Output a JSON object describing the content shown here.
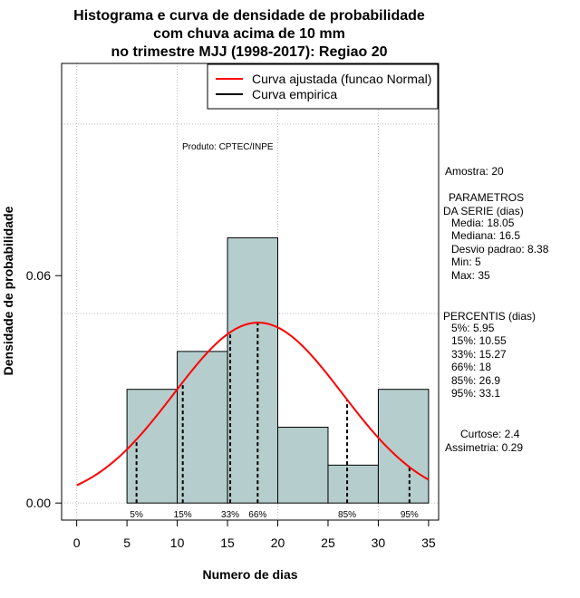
{
  "chart_data": {
    "type": "histogram",
    "title_lines": [
      "Histograma e curva de densidade de probabilidade",
      "com chuva acima de 10 mm",
      "no trimestre MJJ (1998-2017): Regiao 20"
    ],
    "xlabel": "Numero de dias",
    "ylabel": "Densidade de probabilidade",
    "xlim": [
      -1.5,
      36
    ],
    "ylim": [
      -0.0045,
      0.116
    ],
    "x_ticks": [
      0,
      5,
      10,
      15,
      20,
      25,
      30,
      35
    ],
    "x_tick_labels": [
      "0",
      "5",
      "10",
      "15",
      "20",
      "25",
      "30",
      "35"
    ],
    "y_ticks": [
      0.0,
      0.06
    ],
    "y_tick_labels": [
      "0.00",
      "0.06"
    ],
    "grid_x": [
      0,
      10,
      20,
      30
    ],
    "grid_y": [
      0.0,
      0.05,
      0.1
    ],
    "bins": [
      {
        "start": 5,
        "end": 10,
        "density": 0.03
      },
      {
        "start": 10,
        "end": 15,
        "density": 0.04
      },
      {
        "start": 15,
        "end": 20,
        "density": 0.07
      },
      {
        "start": 20,
        "end": 25,
        "density": 0.02
      },
      {
        "start": 25,
        "end": 30,
        "density": 0.01
      },
      {
        "start": 30,
        "end": 35,
        "density": 0.03
      }
    ],
    "bar_color": "#b5cdcd",
    "normal_curve": {
      "mean": 18.05,
      "sd": 8.38,
      "x_range": [
        0,
        35
      ],
      "color": "#ff0000"
    },
    "percentile_lines": [
      {
        "label": "5%",
        "x": 5.95
      },
      {
        "label": "15%",
        "x": 10.55
      },
      {
        "label": "33%",
        "x": 15.27
      },
      {
        "label": "66%",
        "x": 18
      },
      {
        "label": "85%",
        "x": 26.9
      },
      {
        "label": "95%",
        "x": 33.1
      }
    ],
    "legend": [
      {
        "label": "Curva ajustada (funcao Normal)",
        "color": "#ff0000"
      },
      {
        "label": "Curva empirica",
        "color": "#000000"
      }
    ],
    "legend_position": "top-right",
    "credit": "Produto: CPTEC/INPE"
  },
  "side_panel": {
    "amostra": "Amostra: 20",
    "param_header_1": "PARAMETROS",
    "param_header_2": "DA SERIE (dias)",
    "params": [
      "Media: 18.05",
      "Mediana: 16.5",
      "Desvio padrao: 8.38",
      "Min: 5",
      "Max: 35"
    ],
    "perc_header": "PERCENTIS (dias)",
    "percentis": [
      "5%: 5.95",
      "15%: 10.55",
      "33%: 15.27",
      "66%: 18",
      "85%: 26.9",
      "95%: 33.1"
    ],
    "curtose": "Curtose: 2.4",
    "assimetria": "Assimetria: 0.29"
  }
}
